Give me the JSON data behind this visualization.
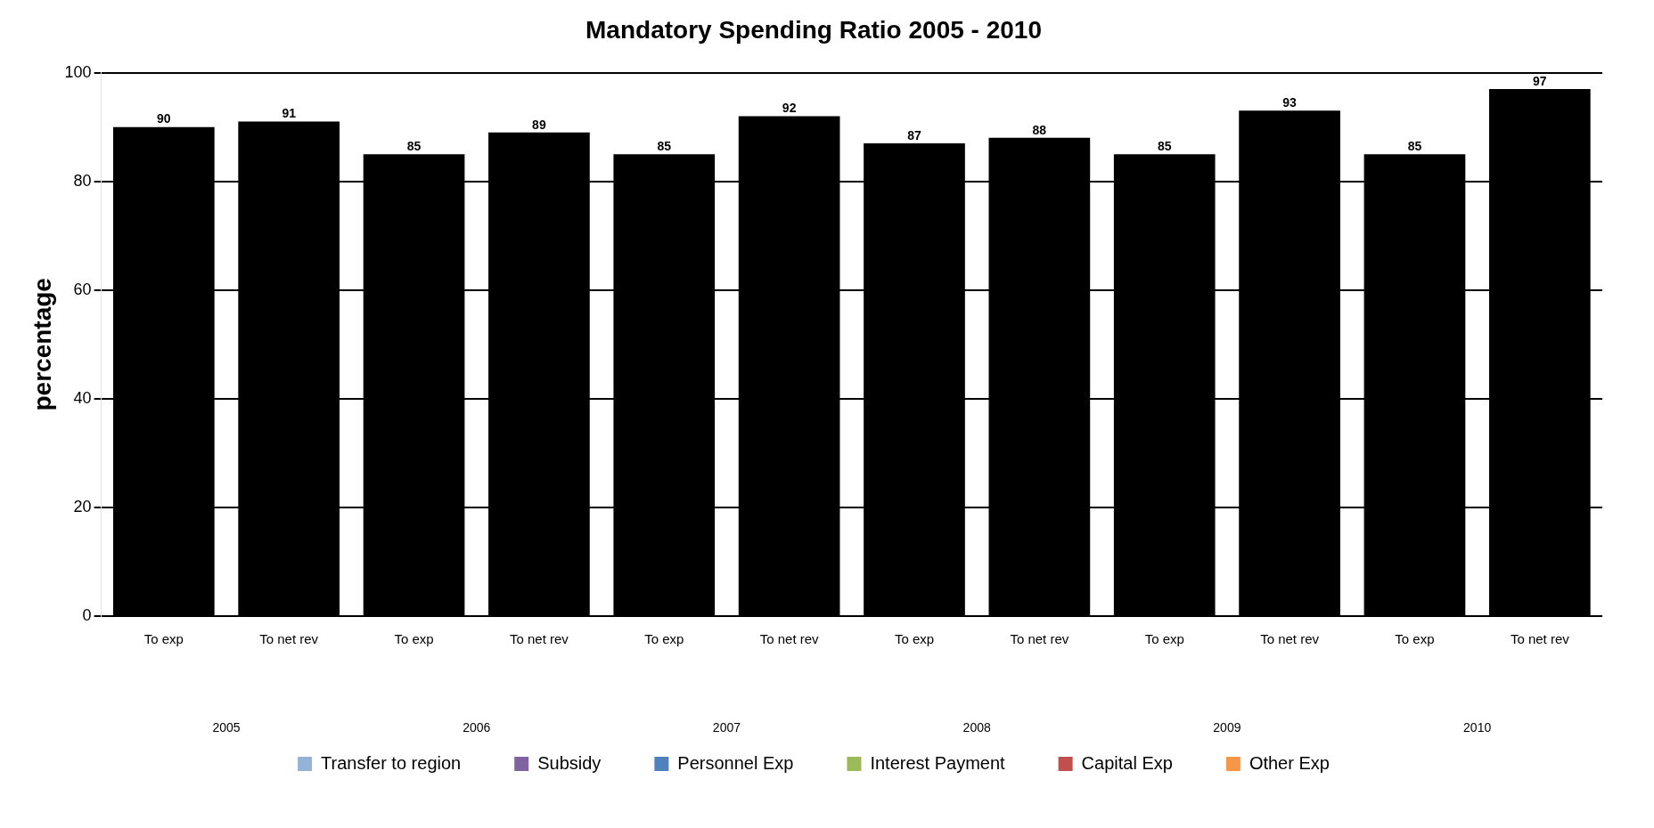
{
  "chart_data": {
    "type": "bar",
    "title": "Mandatory Spending Ratio 2005 - 2010",
    "ylabel": "percentage",
    "categories": [
      "To exp",
      "To net rev",
      "To exp",
      "To net rev",
      "To exp",
      "To net rev",
      "To exp",
      "To net rev",
      "To exp",
      "To net rev",
      "To exp",
      "To net rev"
    ],
    "annotations": [
      "2005",
      "2006",
      "2007",
      "2008",
      "2009",
      "2010"
    ],
    "series": [
      {
        "color": "#000000",
        "values": [
          90,
          91,
          85,
          89,
          85,
          92,
          87,
          88,
          85,
          93,
          85,
          97
        ]
      },
      {
        "name": "Transfer to region",
        "color": "#95b3d7",
        "values": [
          null,
          null,
          null,
          null,
          null,
          null,
          null,
          null,
          null,
          null,
          null,
          null
        ]
      },
      {
        "name": "Subsidy",
        "color": "#8064a2",
        "values": [
          null,
          null,
          null,
          null,
          null,
          null,
          null,
          null,
          null,
          null,
          null,
          null
        ]
      },
      {
        "name": "Personnel Exp",
        "color": "#4f81bd",
        "values": [
          null,
          null,
          null,
          null,
          null,
          null,
          null,
          null,
          null,
          null,
          null,
          null
        ]
      },
      {
        "name": "Interest Payment",
        "color": "#9bbb59",
        "values": [
          null,
          null,
          null,
          null,
          null,
          null,
          null,
          null,
          null,
          null,
          null,
          null
        ]
      },
      {
        "name": "Capital Exp",
        "color": "#c0504d",
        "values": [
          null,
          null,
          null,
          null,
          null,
          null,
          null,
          null,
          null,
          null,
          null,
          null
        ]
      },
      {
        "name": "Other Exp",
        "color": "#f79646",
        "values": [
          null,
          null,
          null,
          null,
          null,
          null,
          null,
          null,
          null,
          null,
          null,
          null
        ]
      }
    ],
    "ylim": [
      0,
      100
    ],
    "yticks": [
      0,
      20,
      40,
      60,
      80,
      100
    ],
    "grid": "y",
    "legend": "bottom",
    "data_labels": true
  }
}
